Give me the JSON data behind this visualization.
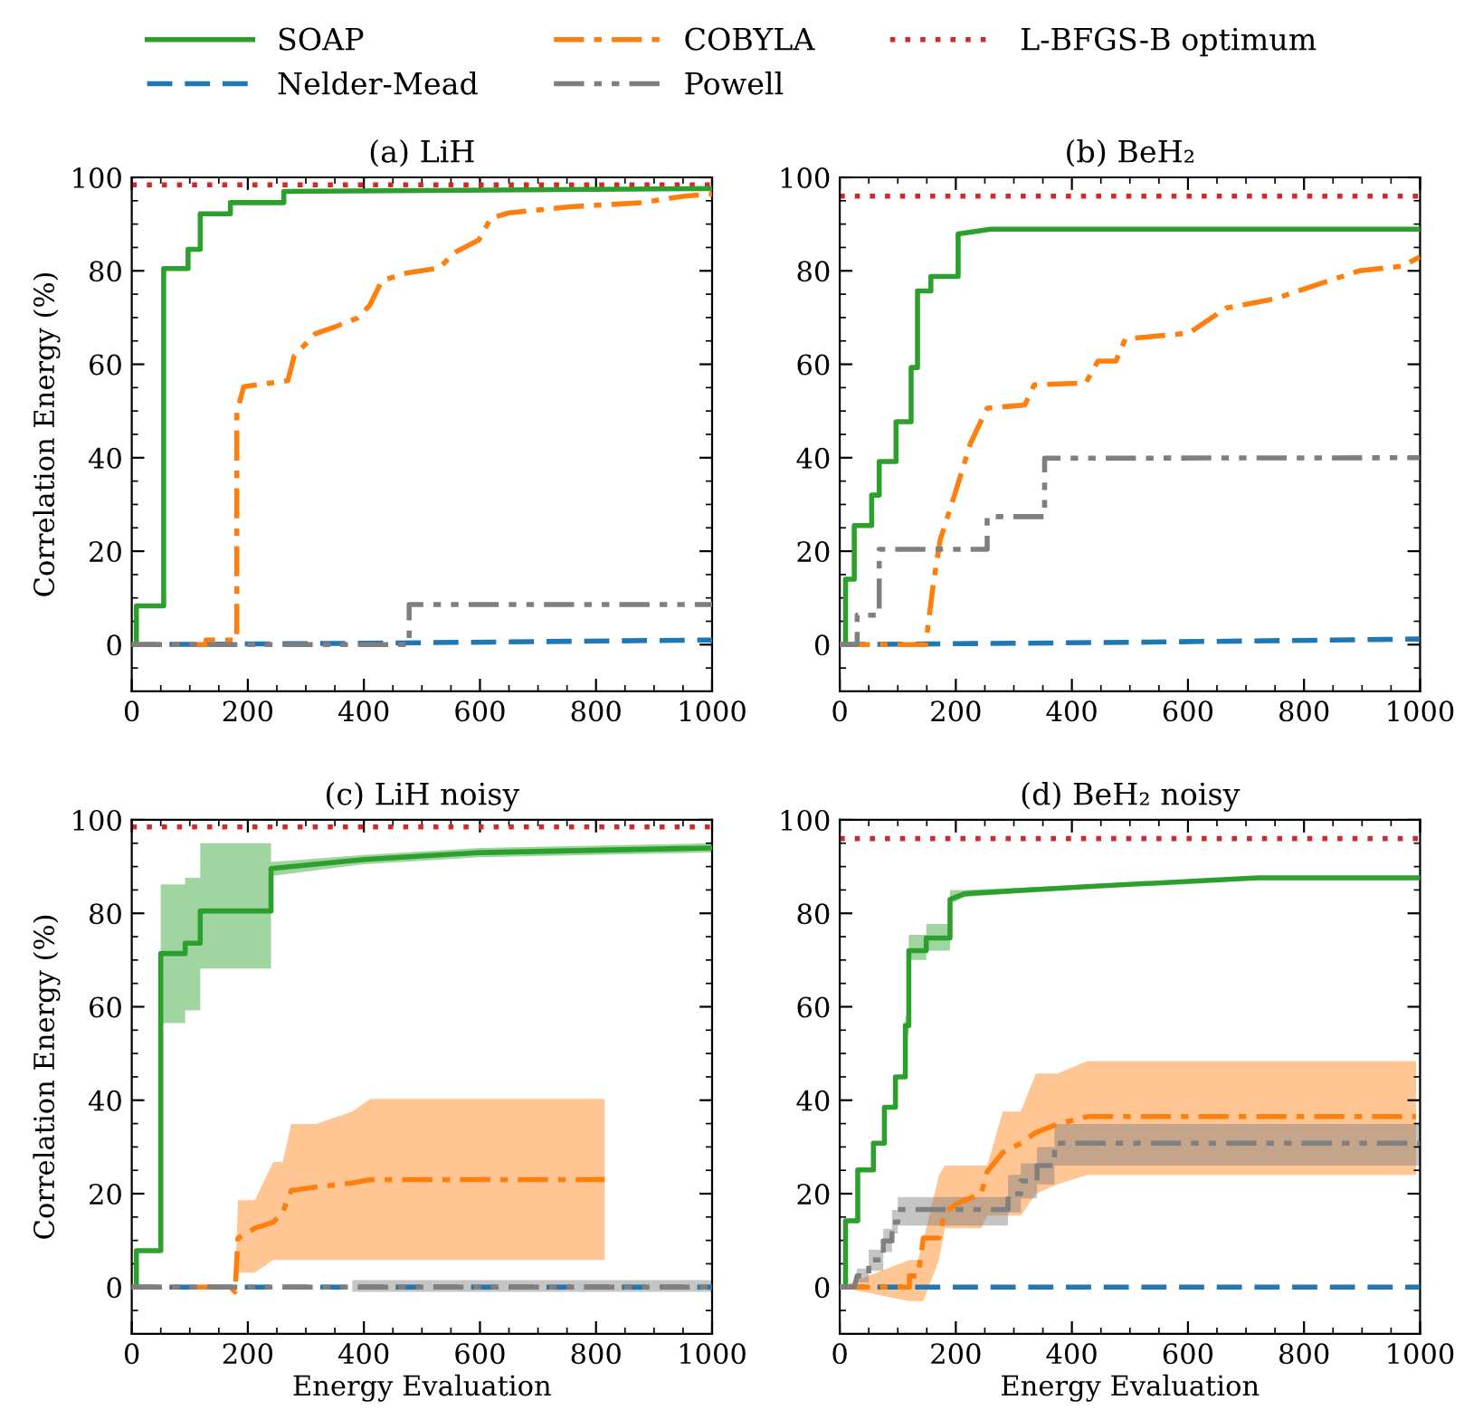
{
  "chart_data": [
    {
      "type": "line",
      "title": "(a) LiH",
      "ylabel": "Correlation Energy (%)",
      "xlim": [
        0,
        1000
      ],
      "ylim": [
        -10,
        100
      ],
      "xticks": [
        0,
        200,
        400,
        600,
        800,
        1000
      ],
      "yticks": [
        0,
        20,
        40,
        60,
        80,
        100
      ],
      "grid": false,
      "legend": "top",
      "ref_lines": [
        {
          "axis": "y",
          "value": 98.4,
          "label": "L-BFGS-B optimum",
          "color": "#d62728",
          "line_style": "dotted"
        }
      ],
      "series": [
        {
          "name": "SOAP",
          "color": "#2ca02c",
          "line_style": "solid",
          "x": [
            0,
            8,
            8,
            55,
            55,
            97,
            97,
            118,
            118,
            170,
            170,
            262,
            262,
            1000
          ],
          "values": [
            0,
            0,
            8.3,
            8.3,
            80.5,
            80.5,
            84.6,
            84.6,
            92.2,
            92.2,
            94.6,
            94.6,
            97,
            97.6
          ]
        },
        {
          "name": "Nelder-Mead",
          "color": "#1f77b4",
          "line_style": "dashed",
          "x": [
            0,
            400,
            1000
          ],
          "values": [
            0,
            0.3,
            1
          ]
        },
        {
          "name": "COBYLA",
          "color": "#ff7f0e",
          "line_style": "dashdot",
          "x": [
            0,
            128,
            128,
            170,
            181,
            181,
            193,
            269,
            280,
            316,
            348,
            389,
            410,
            431,
            473,
            530,
            556,
            598,
            619,
            650,
            755,
            880,
            953,
            1000
          ],
          "values": [
            0,
            0,
            1,
            1,
            1,
            49.8,
            55.2,
            56.5,
            61.8,
            66.5,
            67.9,
            69.9,
            72.6,
            77.9,
            79.5,
            80.6,
            83.9,
            86.6,
            91.3,
            92.4,
            93.7,
            94.6,
            96,
            96.4
          ]
        },
        {
          "name": "Powell",
          "color": "#7f7f7f",
          "line_style": "dashdotdot",
          "x": [
            0,
            478,
            478,
            1000
          ],
          "values": [
            0,
            0,
            8.6,
            8.6
          ]
        }
      ]
    },
    {
      "type": "line",
      "title": "(b) BeH₂",
      "xlim": [
        0,
        1000
      ],
      "ylim": [
        -10,
        100
      ],
      "xticks": [
        0,
        200,
        400,
        600,
        800,
        1000
      ],
      "yticks": [
        0,
        20,
        40,
        60,
        80,
        100
      ],
      "grid": false,
      "ref_lines": [
        {
          "axis": "y",
          "value": 96,
          "color": "#d62728",
          "line_style": "dotted"
        }
      ],
      "series": [
        {
          "color": "#2ca02c",
          "line_style": "solid",
          "x": [
            0,
            10,
            10,
            25,
            25,
            55,
            55,
            68,
            68,
            97,
            97,
            123,
            123,
            134,
            134,
            157,
            157,
            204,
            204,
            260,
            1000
          ],
          "values": [
            0,
            0,
            14,
            14,
            25.5,
            25.5,
            32,
            32,
            39.2,
            39.2,
            47.7,
            47.7,
            59.3,
            59.3,
            75.7,
            75.7,
            78.8,
            78.8,
            87.9,
            88.9,
            88.9
          ]
        },
        {
          "color": "#1f77b4",
          "line_style": "dashed",
          "x": [
            0,
            500,
            1000
          ],
          "values": [
            0,
            0.5,
            1.2
          ]
        },
        {
          "color": "#ff7f0e",
          "line_style": "dashdot",
          "x": [
            0,
            148,
            162,
            173,
            199,
            225,
            254,
            319,
            335,
            424,
            445,
            476,
            492,
            602,
            665,
            749,
            895,
            969,
            1000
          ],
          "values": [
            0,
            0,
            13.7,
            22.4,
            32.5,
            43,
            50.6,
            51.3,
            55.6,
            56,
            60.7,
            60.7,
            65.4,
            66.7,
            72,
            74,
            80,
            81,
            83
          ]
        },
        {
          "color": "#7f7f7f",
          "line_style": "dashdotdot",
          "x": [
            0,
            30,
            30,
            68,
            68,
            254,
            254,
            353,
            353,
            1000
          ],
          "values": [
            0,
            0,
            6.3,
            6.3,
            20.4,
            20.4,
            27.4,
            27.4,
            39.9,
            40
          ]
        }
      ]
    },
    {
      "type": "line",
      "title": "(c) LiH noisy",
      "xlabel": "Energy Evaluation",
      "ylabel": "Correlation Energy (%)",
      "xlim": [
        0,
        1000
      ],
      "ylim": [
        -10,
        100
      ],
      "xticks": [
        0,
        200,
        400,
        600,
        800,
        1000
      ],
      "yticks": [
        0,
        20,
        40,
        60,
        80,
        100
      ],
      "grid": false,
      "ref_lines": [
        {
          "axis": "y",
          "value": 98.5,
          "color": "#d62728",
          "line_style": "dotted"
        }
      ],
      "series": [
        {
          "color": "#2ca02c",
          "line_style": "solid",
          "x": [
            0,
            8,
            8,
            50,
            50,
            92,
            92,
            118,
            118,
            240,
            240,
            400,
            600,
            1000
          ],
          "values": [
            0,
            0,
            7.8,
            7.8,
            71.4,
            71.4,
            73.6,
            73.6,
            80.5,
            80.5,
            89.6,
            91.5,
            93,
            94
          ],
          "lower": [
            null,
            null,
            null,
            null,
            56.5,
            56.5,
            59.2,
            59.2,
            68.2,
            68.2,
            88,
            90.5,
            92,
            93
          ],
          "upper": [
            null,
            null,
            null,
            null,
            86.2,
            86.2,
            87.6,
            87.6,
            95,
            95,
            91,
            92.5,
            94,
            95
          ]
        },
        {
          "color": "#1f77b4",
          "line_style": "dashed",
          "x": [
            0,
            1000
          ],
          "values": [
            0,
            0
          ]
        },
        {
          "color": "#ff7f0e",
          "line_style": "dashdot",
          "x": [
            0,
            170,
            178,
            183,
            212,
            244,
            260,
            275,
            317,
            380,
            411,
            815
          ],
          "values": [
            0,
            0,
            -1,
            10.5,
            12.6,
            13.9,
            16,
            20.7,
            21.4,
            22.3,
            23,
            23
          ],
          "lower": [
            null,
            null,
            0,
            3.1,
            3.1,
            5.8,
            5.8,
            5.8,
            5.8,
            5.8,
            5.8,
            5.8
          ],
          "upper": [
            null,
            null,
            0,
            18.6,
            18.6,
            26.8,
            26.8,
            34.9,
            34.9,
            37.6,
            40.3,
            40.3
          ]
        },
        {
          "color": "#7f7f7f",
          "line_style": "dashdotdot",
          "x": [
            0,
            380,
            1000
          ],
          "values": [
            0,
            0,
            0
          ],
          "lower": [
            null,
            -1,
            -1
          ],
          "upper": [
            null,
            1.5,
            1.5
          ]
        }
      ]
    },
    {
      "type": "line",
      "title": "(d) BeH₂ noisy",
      "xlabel": "Energy Evaluation",
      "xlim": [
        0,
        1000
      ],
      "ylim": [
        -10,
        100
      ],
      "xticks": [
        0,
        200,
        400,
        600,
        800,
        1000
      ],
      "yticks": [
        0,
        20,
        40,
        60,
        80,
        100
      ],
      "grid": false,
      "ref_lines": [
        {
          "axis": "y",
          "value": 96,
          "color": "#d62728",
          "line_style": "dotted"
        }
      ],
      "series": [
        {
          "color": "#2ca02c",
          "line_style": "solid",
          "x": [
            0,
            10,
            10,
            31,
            31,
            58,
            58,
            77,
            77,
            96,
            96,
            113,
            113,
            119,
            119,
            149,
            149,
            190,
            190,
            215,
            440,
            720,
            1000
          ],
          "values": [
            0,
            0,
            14.2,
            14.2,
            25.1,
            25.1,
            30.8,
            30.8,
            38.5,
            38.5,
            45,
            45,
            56,
            56,
            72,
            72,
            74.7,
            74.7,
            83,
            84.2,
            85.8,
            87.6,
            87.6
          ],
          "lower": [
            null,
            null,
            null,
            null,
            null,
            null,
            null,
            null,
            null,
            null,
            null,
            null,
            54,
            54,
            70,
            70,
            72,
            72,
            82,
            83.5,
            85.5,
            87.3,
            87.3
          ],
          "upper": [
            null,
            null,
            null,
            null,
            null,
            null,
            null,
            null,
            null,
            null,
            null,
            null,
            58,
            58,
            75.4,
            75.4,
            77.7,
            77.7,
            85,
            85,
            86.2,
            87.9,
            87.9
          ]
        },
        {
          "color": "#1f77b4",
          "line_style": "dashed",
          "x": [
            0,
            1000
          ],
          "values": [
            0,
            0
          ]
        },
        {
          "color": "#ff7f0e",
          "line_style": "dashdot",
          "x": [
            0,
            120,
            120,
            135,
            144,
            171,
            181,
            207,
            244,
            254,
            281,
            312,
            338,
            375,
            427,
            993
          ],
          "values": [
            0,
            0,
            2.4,
            2.4,
            10.5,
            10.5,
            16,
            18.2,
            20,
            24.7,
            28.8,
            30.8,
            33.1,
            34.9,
            36.5,
            36.5
          ],
          "lower": [
            0,
            -3,
            -3,
            -3,
            -3,
            5.8,
            12.6,
            12.6,
            12.6,
            15.3,
            15.3,
            15.3,
            20,
            22,
            24,
            24
          ],
          "upper": [
            0,
            5.8,
            5.8,
            5.8,
            10,
            24,
            26,
            26,
            26,
            26,
            37.6,
            37.6,
            45.7,
            45.7,
            48.4,
            48.4
          ]
        },
        {
          "color": "#7f7f7f",
          "line_style": "dashdotdot",
          "x": [
            0,
            25,
            30,
            50,
            50,
            75,
            75,
            90,
            90,
            100,
            100,
            290,
            290,
            312,
            312,
            340,
            340,
            370,
            370,
            380,
            1000
          ],
          "values": [
            0,
            0,
            2.4,
            2.4,
            5.8,
            5.8,
            9.9,
            9.9,
            13.9,
            13.9,
            16.6,
            16.6,
            20,
            20,
            22.7,
            22.7,
            26,
            26,
            30.8,
            30.8,
            30.8
          ],
          "lower": [
            0,
            0,
            1,
            1,
            3.5,
            3.5,
            7.5,
            7.5,
            11.5,
            11.5,
            13.2,
            13.2,
            16,
            16,
            19,
            19,
            22,
            22,
            26,
            26,
            26
          ],
          "upper": [
            0,
            0,
            4,
            4,
            8,
            8,
            12.5,
            12.5,
            16.5,
            16.5,
            19.3,
            19.3,
            24,
            24,
            26.5,
            26.5,
            30,
            30,
            34.9,
            34.9,
            34.9
          ]
        }
      ]
    }
  ]
}
